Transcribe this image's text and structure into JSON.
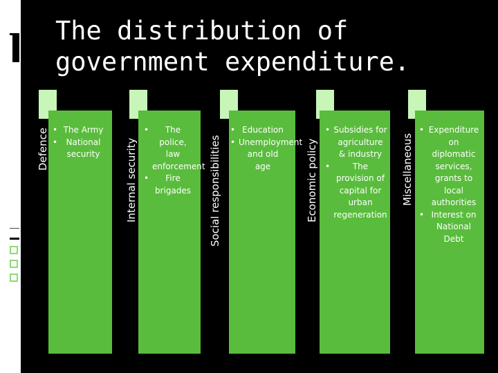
{
  "title": "The distribution of government expenditure.",
  "colors": {
    "background": "#000000",
    "card": "#59bc3c",
    "tab": "#c8f5b8",
    "text": "#ffffff"
  },
  "categories": [
    {
      "label": "Defence",
      "items": [
        "The Army",
        "National security"
      ]
    },
    {
      "label": "Internal security",
      "items": [
        "The police, law enforcement",
        "Fire brigades"
      ]
    },
    {
      "label": "Social responsibilities",
      "items": [
        "Education",
        "Unemployment and old age"
      ]
    },
    {
      "label": "Economic policy",
      "items": [
        "Subsidies for agriculture & industry",
        "The provision of capital for urban regeneration"
      ]
    },
    {
      "label": "Miscellaneous",
      "items": [
        "Expenditure on diplomatic services, grants to local authorities",
        "Interest on National Debt"
      ]
    }
  ]
}
